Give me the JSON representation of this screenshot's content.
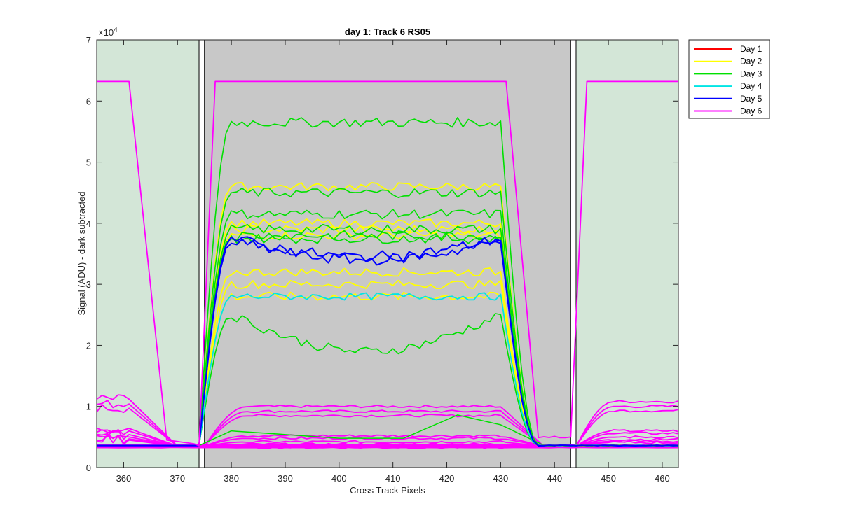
{
  "chart_data": {
    "type": "line",
    "title": "day 1: Track 6  RS05",
    "xlabel": "Cross Track Pixels",
    "ylabel": "Signal (ADU) - dark subtracted",
    "y_exponent_label": "×10",
    "y_exponent": "4",
    "xlim": [
      355,
      463
    ],
    "ylim": [
      0,
      70000
    ],
    "xticks": [
      360,
      370,
      380,
      390,
      400,
      410,
      420,
      430,
      440,
      450,
      460
    ],
    "yticks": [
      0,
      1,
      2,
      3,
      4,
      5,
      6,
      7
    ],
    "grid": false,
    "legend_position": "outside-top-right",
    "colors": {
      "plot_background": "#c8c8c8",
      "side_region": "#d3e6d7",
      "Day 1": "#ff0000",
      "Day 2": "#ffff00",
      "Day 3": "#00e000",
      "Day 4": "#00e5e5",
      "Day 5": "#0000ff",
      "Day 6": "#ff00ff"
    },
    "regions": [
      {
        "type": "side",
        "x_start": 355,
        "x_end": 374
      },
      {
        "type": "side",
        "x_start": 444,
        "x_end": 463
      }
    ],
    "boundary_boxes": [
      {
        "x_start": 374,
        "x_end": 375
      },
      {
        "x_start": 443,
        "x_end": 444
      }
    ],
    "legend": [
      {
        "name": "Day 1",
        "color": "#ff0000"
      },
      {
        "name": "Day 2",
        "color": "#ffff00"
      },
      {
        "name": "Day 3",
        "color": "#00e000"
      },
      {
        "name": "Day 4",
        "color": "#00e5e5"
      },
      {
        "name": "Day 5",
        "color": "#0000ff"
      },
      {
        "name": "Day 6",
        "color": "#ff00ff"
      }
    ],
    "center_profile_families": {
      "Day 2": [
        46000,
        40000,
        39000,
        38000,
        32000,
        30000,
        28000
      ],
      "Day 3": [
        56500,
        45000,
        41500,
        39000,
        38000,
        37500,
        25000
      ],
      "Day 4": [
        28000
      ],
      "Day 5": [
        37500,
        37000
      ]
    },
    "day6_center_level": 63200,
    "day6_edge_levels": [
      63200,
      63200
    ],
    "low_profile_levels": [
      10000,
      9200,
      8500,
      5200,
      4800,
      4200,
      3800,
      3500,
      3300
    ]
  }
}
